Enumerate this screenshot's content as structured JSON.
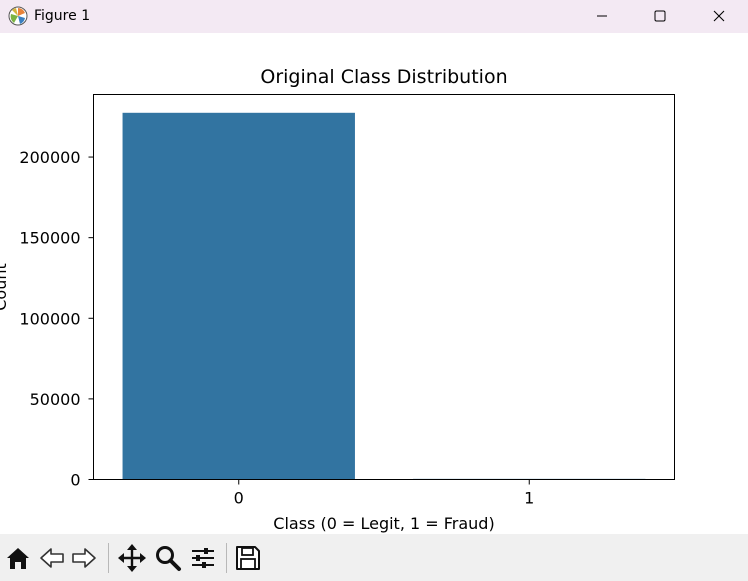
{
  "window": {
    "title": "Figure 1",
    "icons": [
      "matplotlib-logo-icon",
      "minimize-icon",
      "maximize-icon",
      "close-icon"
    ]
  },
  "chart_data": {
    "type": "bar",
    "title": "Original Class Distribution",
    "xlabel": "Class (0 = Legit, 1 = Fraud)",
    "ylabel": "Count",
    "categories": [
      "0",
      "1"
    ],
    "values": [
      227451,
      394
    ],
    "ylim": [
      0,
      238800
    ],
    "yticks": [
      0,
      50000,
      100000,
      150000,
      200000
    ],
    "ytick_labels": [
      "0",
      "50000",
      "100000",
      "150000",
      "200000"
    ],
    "bar_color": "#3274a1",
    "grid": false,
    "legend": "none"
  },
  "toolbar": {
    "buttons": [
      "home-icon",
      "back-icon",
      "forward-icon",
      "pan-icon",
      "zoom-icon",
      "configure-subplots-icon",
      "save-icon"
    ]
  }
}
